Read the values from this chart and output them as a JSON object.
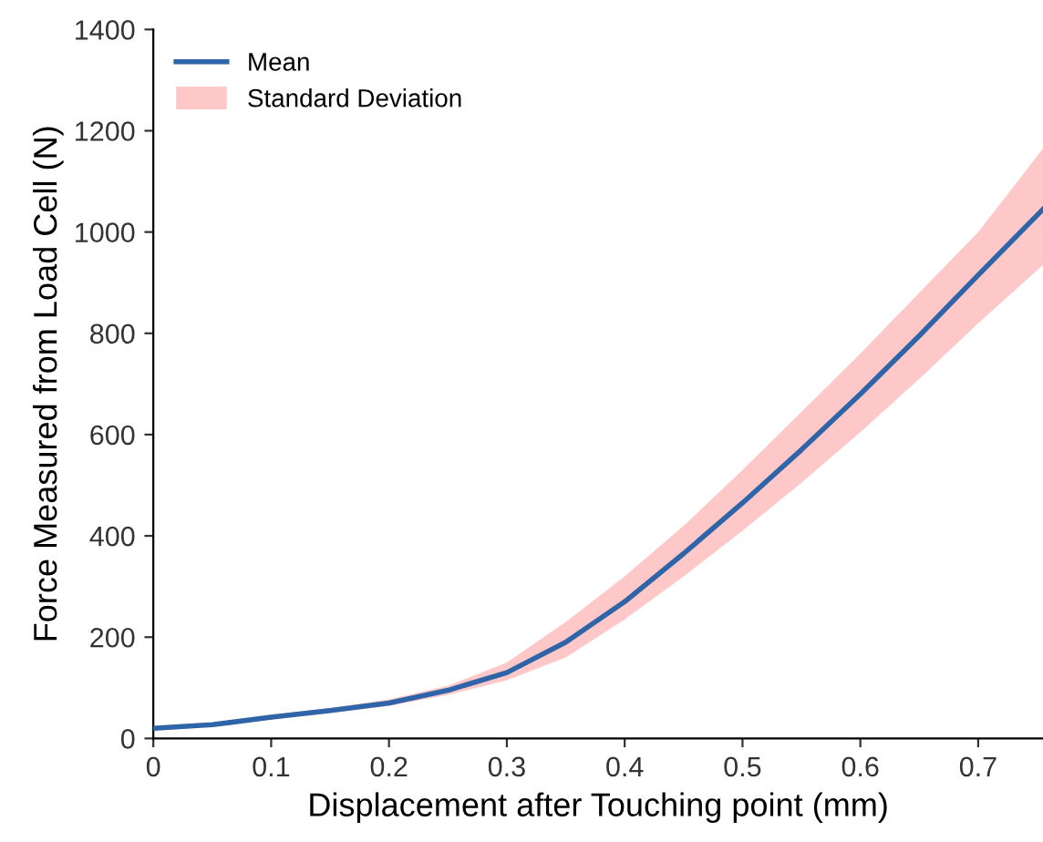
{
  "chart_data": {
    "type": "line",
    "xlabel": "Displacement after Touching point (mm)",
    "ylabel": "Force Measured from Load Cell (N)",
    "xlim": [
      0,
      0.755
    ],
    "xticks": [
      0,
      0.1,
      0.2,
      0.3,
      0.4,
      0.5,
      0.6,
      0.7
    ],
    "ylim": [
      0,
      1400
    ],
    "yticks": [
      0,
      200,
      400,
      600,
      800,
      1000,
      1200,
      1400
    ],
    "grid": false,
    "legend": "top left",
    "series": [
      {
        "name": "Mean",
        "color": "#2e64a8",
        "x": [
          0,
          0.05,
          0.1,
          0.15,
          0.2,
          0.25,
          0.3,
          0.35,
          0.4,
          0.45,
          0.5,
          0.55,
          0.6,
          0.65,
          0.7,
          0.755
        ],
        "values": [
          20,
          27,
          42,
          55,
          70,
          95,
          130,
          190,
          270,
          365,
          465,
          570,
          680,
          795,
          915,
          1045
        ],
        "lower": [
          15,
          23,
          37,
          50,
          64,
          86,
          115,
          160,
          235,
          320,
          410,
          505,
          605,
          710,
          820,
          935
        ],
        "upper": [
          25,
          31,
          47,
          60,
          77,
          104,
          150,
          230,
          320,
          420,
          530,
          645,
          760,
          880,
          1000,
          1165
        ]
      },
      {
        "name": "Standard Deviation",
        "type": "area",
        "color": "#ffc8c8",
        "values": [
          null,
          null,
          null,
          null,
          null,
          null,
          null,
          null,
          null,
          null,
          null,
          null,
          null,
          null,
          null,
          null
        ]
      }
    ]
  }
}
